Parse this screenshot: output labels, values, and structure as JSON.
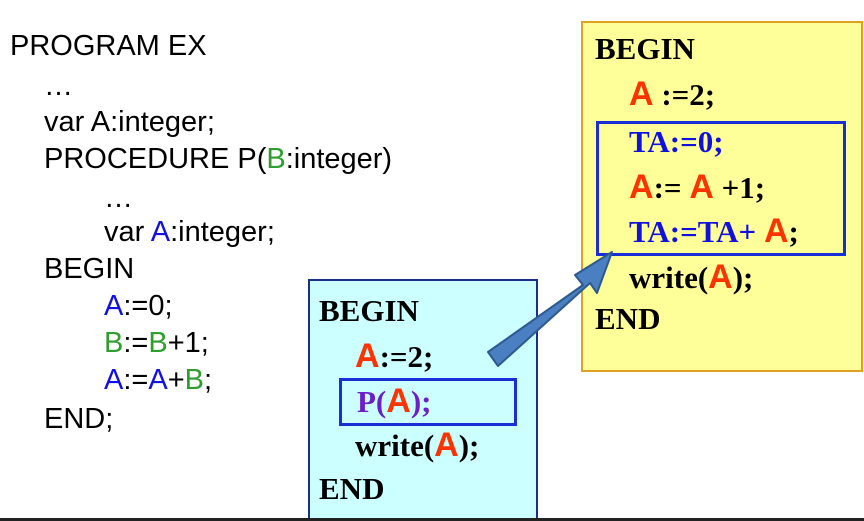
{
  "program": {
    "l1": "PROGRAM EX",
    "l2": "…",
    "l3": "var A:integer;",
    "l4_pre": "PROCEDURE P(",
    "l4_b": "B",
    "l4_post": ":integer)",
    "l5": "…",
    "l6_pre": "var ",
    "l6_a": "A",
    "l6_post": ":integer;",
    "l7": "BEGIN",
    "l8_a": "A",
    "l8_post": ":=0;",
    "l9_b1": "B",
    "l9_mid": ":=",
    "l9_b2": "B",
    "l9_post": "+1;",
    "l10_a1": "A",
    "l10_mid": ":=",
    "l10_a2": "A",
    "l10_plus": "+",
    "l10_b": "B",
    "l10_post": ";",
    "l11": "END;"
  },
  "main_block": {
    "begin": "BEGIN",
    "assign_a": "A",
    "assign_rest": ":=2;",
    "call_p": "P(",
    "call_a": "A",
    "call_end": ");",
    "write_pre": "write(",
    "write_a": "A",
    "write_end": ");",
    "end": "END"
  },
  "proc_block": {
    "begin": "BEGIN",
    "l1_a": "A",
    "l1_rest": " :=2;",
    "l2": "TA:=0;",
    "l3_a1": "A",
    "l3_mid": ":= ",
    "l3_a2": "A",
    "l3_rest": " +1;",
    "l4_pre": "TA:=TA+ ",
    "l4_a": "A",
    "l4_end": ";",
    "write_pre": "write(",
    "write_a": "A",
    "write_end": ");",
    "end": "END"
  },
  "colors": {
    "param": "#2e9e2e",
    "local": "#1010e0",
    "actual": "#ff3300",
    "call": "#6a1fc8",
    "arrow": "#4a7fc1"
  }
}
